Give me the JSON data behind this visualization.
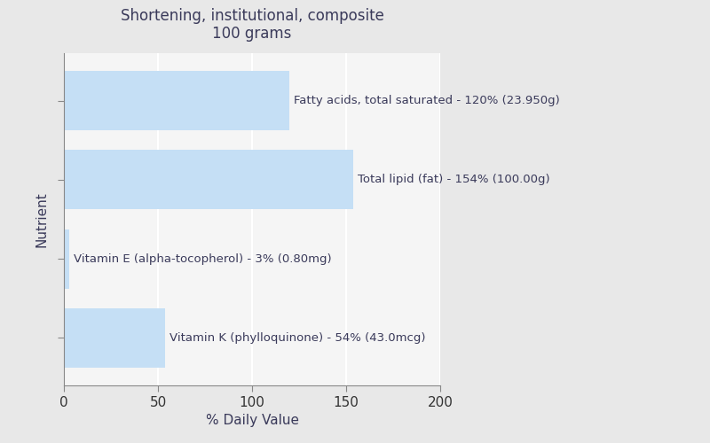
{
  "title_line1": "Shortening, institutional, composite",
  "title_line2": "100 grams",
  "xlabel": "% Daily Value",
  "ylabel": "Nutrient",
  "background_color": "#e8e8e8",
  "plot_background_color": "#f5f5f5",
  "bar_color": "#c5dff5",
  "nutrients": [
    "Fatty acids, total saturated - 120% (23.950g)",
    "Total lipid (fat) - 154% (100.00g)",
    "Vitamin E (alpha-tocopherol) - 3% (0.80mg)",
    "Vitamin K (phylloquinone) - 54% (43.0mcg)"
  ],
  "values": [
    120,
    154,
    3,
    54
  ],
  "xlim": [
    0,
    200
  ],
  "xticks": [
    0,
    50,
    100,
    150,
    200
  ],
  "grid_color": "#ffffff",
  "text_color": "#3a3a5a",
  "title_color": "#3a3a5a",
  "label_fontsize": 9.5,
  "title_fontsize": 12,
  "bar_height": 0.75
}
